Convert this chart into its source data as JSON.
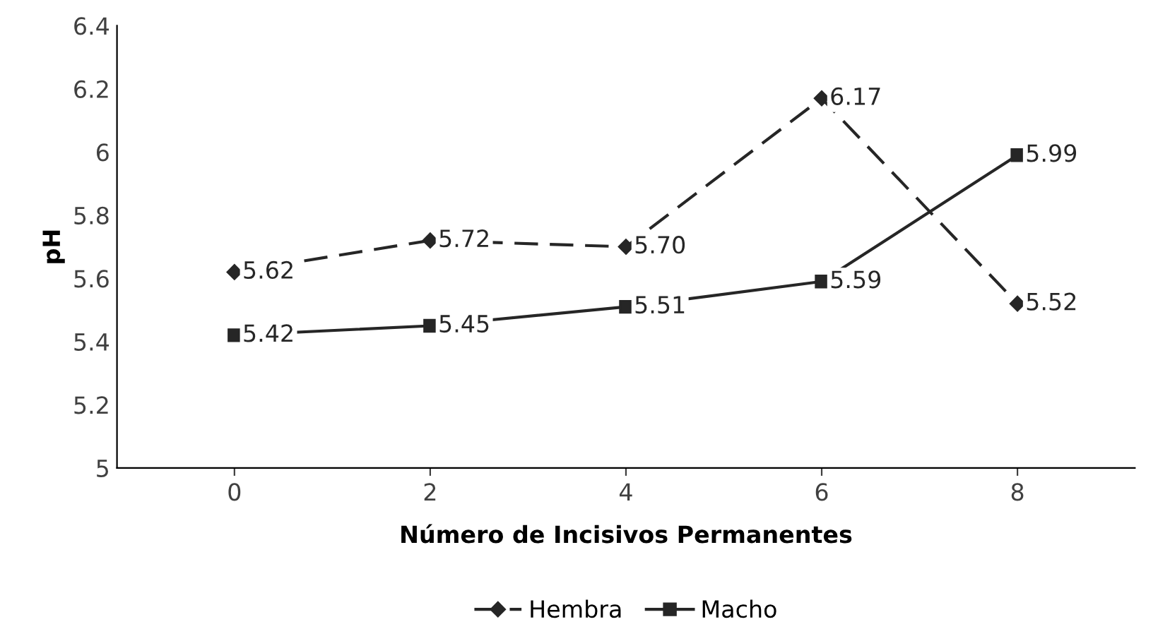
{
  "chart_data": {
    "type": "line",
    "xlabel": "Número de Incisivos Permanentes",
    "ylabel": "pH",
    "categories": [
      "0",
      "2",
      "4",
      "6",
      "8"
    ],
    "series": [
      {
        "name": "Hembra",
        "color": "#262626",
        "values": [
          5.62,
          5.72,
          5.7,
          6.17,
          5.52
        ],
        "value_labels": [
          "5.62",
          "5.72",
          "5.70",
          "6.17",
          "5.52"
        ],
        "marker": "diamond",
        "line_style": "dashed"
      },
      {
        "name": "Macho",
        "color": "#262626",
        "values": [
          5.42,
          5.45,
          5.51,
          5.59,
          5.99
        ],
        "value_labels": [
          "5.42",
          "5.45",
          "5.51",
          "5.59",
          "5.99"
        ],
        "marker": "square",
        "line_style": "solid"
      }
    ],
    "ylim": [
      5,
      6.4
    ],
    "yticks": [
      5,
      5.2,
      5.4,
      5.6,
      5.8,
      6,
      6.2,
      6.4
    ],
    "grid": false,
    "legend": "bottom"
  }
}
